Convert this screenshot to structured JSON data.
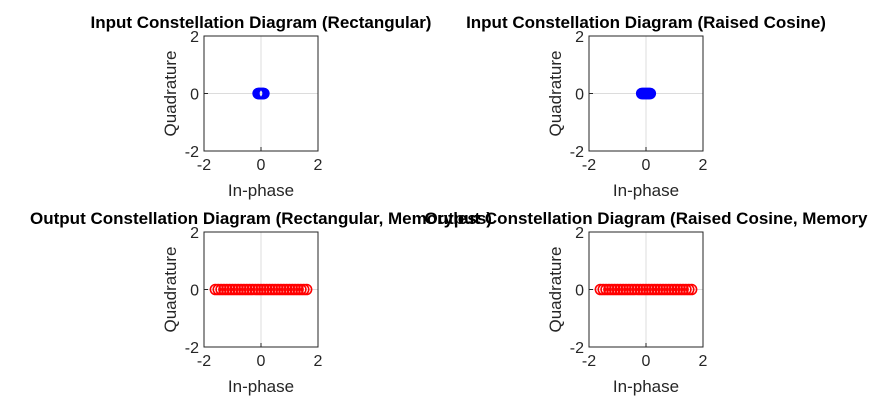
{
  "chart_data": [
    {
      "type": "scatter",
      "title": "Input Constellation Diagram (Rectangular)",
      "xlabel": "In-phase",
      "ylabel": "Quadrature",
      "xlim": [
        -2,
        2
      ],
      "ylim": [
        -2,
        2
      ],
      "xticks": [
        "-2",
        "0",
        "2"
      ],
      "yticks": [
        "-2",
        "0",
        "2"
      ],
      "grid": true,
      "marker": "circle",
      "color": "#0000ff",
      "series": [
        {
          "x": [
            -0.1,
            -0.08,
            -0.06,
            -0.04,
            -0.02,
            0.02,
            0.04,
            0.06,
            0.08,
            0.1
          ],
          "y": [
            0,
            0,
            0,
            0,
            0,
            0,
            0,
            0,
            0,
            0
          ]
        }
      ]
    },
    {
      "type": "scatter",
      "title": "Input Constellation Diagram (Raised Cosine)",
      "xlabel": "In-phase",
      "ylabel": "Quadrature",
      "xlim": [
        -2,
        2
      ],
      "ylim": [
        -2,
        2
      ],
      "xticks": [
        "-2",
        "0",
        "2"
      ],
      "yticks": [
        "-2",
        "0",
        "2"
      ],
      "grid": true,
      "marker": "circle",
      "color": "#0000ff",
      "series": [
        {
          "x": [
            -0.15,
            -0.12,
            -0.09,
            -0.06,
            -0.03,
            0,
            0.03,
            0.06,
            0.09,
            0.12,
            0.15
          ],
          "y": [
            0,
            0,
            0,
            0,
            0,
            0,
            0,
            0,
            0,
            0,
            0
          ]
        }
      ]
    },
    {
      "type": "scatter",
      "title": "Output Constellation Diagram (Rectangular, Memoryless)",
      "xlabel": "In-phase",
      "ylabel": "Quadrature",
      "xlim": [
        -2,
        2
      ],
      "ylim": [
        -2,
        2
      ],
      "xticks": [
        "-2",
        "0",
        "2"
      ],
      "yticks": [
        "-2",
        "0",
        "2"
      ],
      "grid": true,
      "marker": "circle",
      "color": "#ff0000",
      "series": [
        {
          "x": [
            -1.6,
            -1.5,
            -1.4,
            -1.3,
            -1.2,
            -1.1,
            -1.0,
            -0.9,
            -0.8,
            -0.7,
            -0.6,
            -0.5,
            -0.4,
            -0.3,
            -0.2,
            -0.1,
            0,
            0.1,
            0.2,
            0.3,
            0.4,
            0.5,
            0.6,
            0.7,
            0.8,
            0.9,
            1.0,
            1.1,
            1.2,
            1.3,
            1.4,
            1.5,
            1.6
          ],
          "y": [
            0,
            0,
            0,
            0,
            0,
            0,
            0,
            0,
            0,
            0,
            0,
            0,
            0,
            0,
            0,
            0,
            0,
            0,
            0,
            0,
            0,
            0,
            0,
            0,
            0,
            0,
            0,
            0,
            0,
            0,
            0,
            0,
            0
          ]
        }
      ]
    },
    {
      "type": "scatter",
      "title": "Output Constellation Diagram (Raised Cosine, Memory",
      "xlabel": "In-phase",
      "ylabel": "Quadrature",
      "xlim": [
        -2,
        2
      ],
      "ylim": [
        -2,
        2
      ],
      "xticks": [
        "-2",
        "0",
        "2"
      ],
      "yticks": [
        "-2",
        "0",
        "2"
      ],
      "grid": true,
      "marker": "circle",
      "color": "#ff0000",
      "series": [
        {
          "x": [
            -1.6,
            -1.5,
            -1.4,
            -1.3,
            -1.2,
            -1.1,
            -1.0,
            -0.9,
            -0.8,
            -0.7,
            -0.6,
            -0.5,
            -0.4,
            -0.3,
            -0.2,
            -0.1,
            0,
            0.1,
            0.2,
            0.3,
            0.4,
            0.5,
            0.6,
            0.7,
            0.8,
            0.9,
            1.0,
            1.1,
            1.2,
            1.3,
            1.4,
            1.5,
            1.6
          ],
          "y": [
            0,
            0,
            0,
            0,
            0,
            0,
            0,
            0,
            0,
            0,
            0,
            0,
            0,
            0,
            0,
            0,
            0,
            0,
            0,
            0,
            0,
            0,
            0,
            0,
            0,
            0,
            0,
            0,
            0,
            0,
            0,
            0,
            0
          ]
        }
      ]
    }
  ]
}
